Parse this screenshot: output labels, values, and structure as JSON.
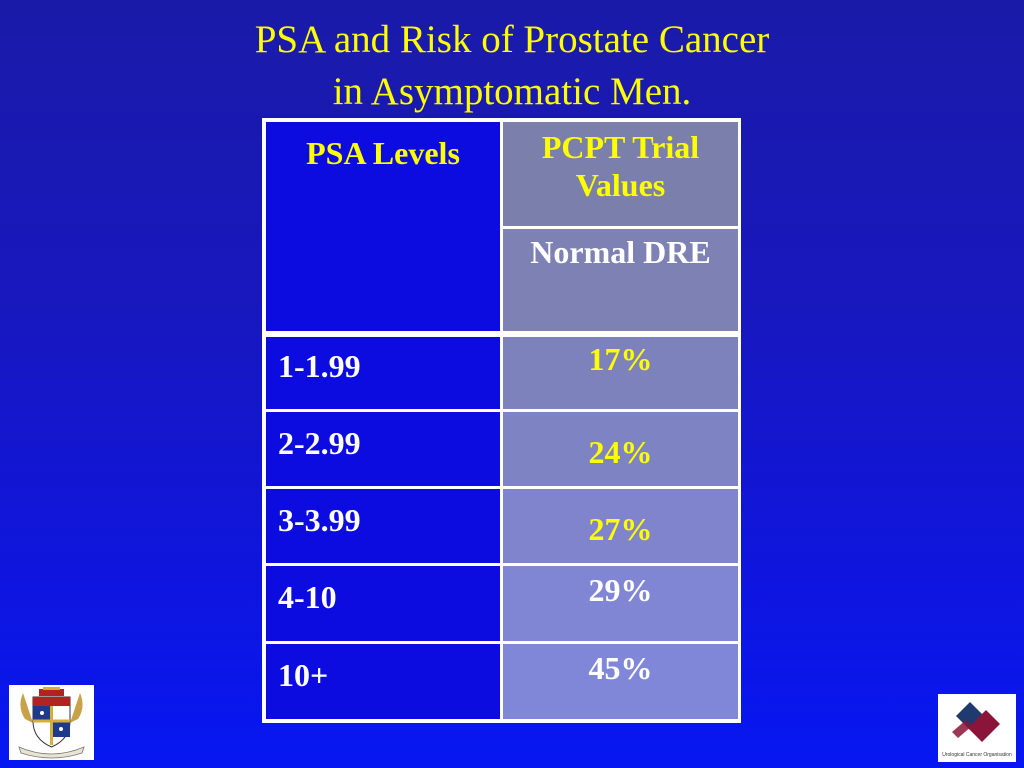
{
  "slide": {
    "title_line1": "PSA and Risk of Prostate Cancer",
    "title_line2": "in Asymptomatic Men."
  },
  "table": {
    "header_col1": "PSA Levels",
    "header_col2": "PCPT Trial Values",
    "subheader_col2": "Normal DRE",
    "rows": [
      {
        "level": "1-1.99",
        "value": "17%"
      },
      {
        "level": "2-2.99",
        "value": "24%"
      },
      {
        "level": "3-3.99",
        "value": "27%"
      },
      {
        "level": "4-10",
        "value": "29%"
      },
      {
        "level": "10+",
        "value": "45%"
      }
    ]
  },
  "logos": {
    "right_caption": "Urological Cancer Organisation",
    "colors": {
      "maroon": "#8a1538",
      "navy": "#1f3a6e"
    }
  },
  "colors": {
    "background": "#1818bf",
    "title_text": "#ffff00",
    "cell_blue": "#0c0ce0",
    "cell_grey": "#7d81b3"
  }
}
